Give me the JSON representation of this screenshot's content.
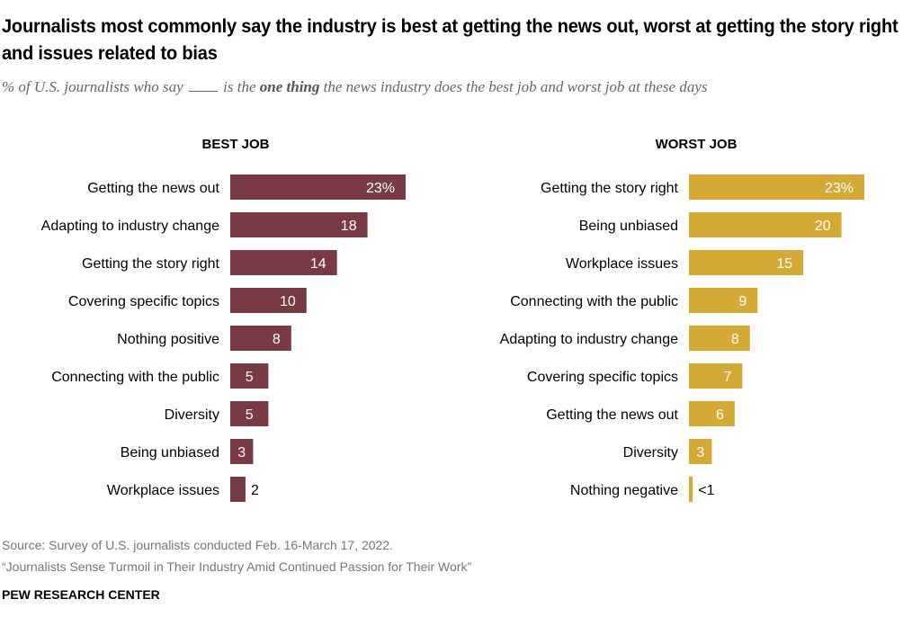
{
  "title": "Journalists most commonly say the industry is best at getting the news out, worst at getting the story right and issues related to bias",
  "subtitle": {
    "before": "% of U.S. journalists who say",
    "middle": "is the",
    "emphasis": "one thing",
    "after": "the news industry does the best job and worst job at these days"
  },
  "footer": {
    "source": "Source: Survey of U.S. journalists conducted Feb. 16-March 17, 2022.",
    "report": "“Journalists Sense Turmoil in Their Industry Amid Continued Passion for Their Work”",
    "org": "PEW RESEARCH CENTER"
  },
  "colors": {
    "best": "#7a3a44",
    "worst": "#d4a934"
  },
  "chart_data": [
    {
      "type": "bar",
      "orientation": "horizontal",
      "title": "BEST JOB",
      "categories": [
        "Getting the news out",
        "Adapting to industry change",
        "Getting the story right",
        "Covering specific topics",
        "Nothing positive",
        "Connecting with the public",
        "Diversity",
        "Being unbiased",
        "Workplace issues"
      ],
      "values": [
        23,
        18,
        14,
        10,
        8,
        5,
        5,
        3,
        2
      ],
      "labels": [
        "23%",
        "18",
        "14",
        "10",
        "8",
        "5",
        "5",
        "3",
        "2"
      ],
      "xlim": [
        0,
        23
      ],
      "grid": false
    },
    {
      "type": "bar",
      "orientation": "horizontal",
      "title": "WORST JOB",
      "categories": [
        "Getting the story right",
        "Being unbiased",
        "Workplace issues",
        "Connecting with the public",
        "Adapting to industry change",
        "Covering specific topics",
        "Getting the news out",
        "Diversity",
        "Nothing negative"
      ],
      "values": [
        23,
        20,
        15,
        9,
        8,
        7,
        6,
        3,
        0.5
      ],
      "labels": [
        "23%",
        "20",
        "15",
        "9",
        "8",
        "7",
        "6",
        "3",
        "<1"
      ],
      "xlim": [
        0,
        23
      ],
      "grid": false
    }
  ]
}
